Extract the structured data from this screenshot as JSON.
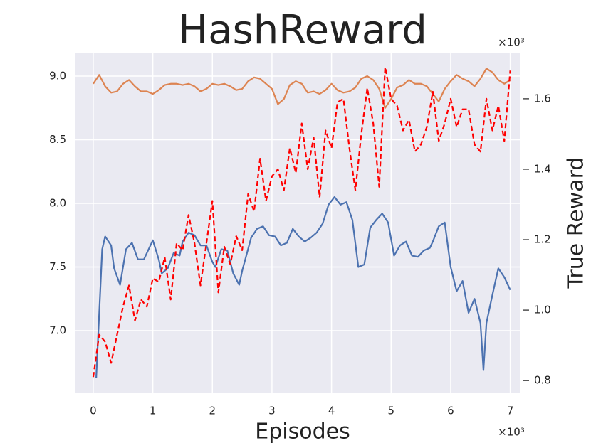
{
  "chart_data": {
    "type": "line",
    "title": "HashReward",
    "x_label": "Episodes",
    "y2_label": "True Reward",
    "x_offset_label": "×10³",
    "y2_offset_label": "×10³",
    "x": [
      0.0,
      0.1,
      0.2,
      0.3,
      0.4,
      0.5,
      0.6,
      0.7,
      0.8,
      0.9,
      1.0,
      1.1,
      1.2,
      1.3,
      1.4,
      1.5,
      1.6,
      1.7,
      1.8,
      1.9,
      2.0,
      2.1,
      2.2,
      2.3,
      2.4,
      2.5,
      2.6,
      2.7,
      2.8,
      2.9,
      3.0,
      3.1,
      3.2,
      3.3,
      3.4,
      3.5,
      3.6,
      3.7,
      3.8,
      3.9,
      4.0,
      4.1,
      4.2,
      4.3,
      4.4,
      4.5,
      4.6,
      4.7,
      4.8,
      4.9,
      5.0,
      5.1,
      5.2,
      5.3,
      5.4,
      5.5,
      5.6,
      5.7,
      5.8,
      5.9,
      6.0,
      6.1,
      6.2,
      6.3,
      6.4,
      6.5,
      6.6,
      6.7,
      6.8,
      6.9,
      7.0
    ],
    "series": [
      {
        "color": "#4c72b0",
        "x": [
          0.05,
          0.15,
          0.2,
          0.3,
          0.35,
          0.45,
          0.55,
          0.65,
          0.75,
          0.85,
          0.9,
          1.0,
          1.1,
          1.15,
          1.25,
          1.35,
          1.45,
          1.5,
          1.6,
          1.7,
          1.8,
          1.9,
          2.0,
          2.05,
          2.15,
          2.25,
          2.35,
          2.45,
          2.5,
          2.65,
          2.75,
          2.85,
          2.95,
          3.05,
          3.15,
          3.25,
          3.35,
          3.45,
          3.55,
          3.65,
          3.75,
          3.85,
          3.95,
          4.05,
          4.15,
          4.25,
          4.35,
          4.45,
          4.55,
          4.65,
          4.75,
          4.85,
          4.95,
          5.05,
          5.15,
          5.25,
          5.35,
          5.45,
          5.55,
          5.65,
          5.7,
          5.8,
          5.9,
          6.0,
          6.1,
          6.2,
          6.3,
          6.4,
          6.5,
          6.55,
          6.6,
          6.7,
          6.8,
          6.9,
          7.0
        ],
        "values": [
          6.63,
          7.64,
          7.74,
          7.67,
          7.49,
          7.36,
          7.64,
          7.69,
          7.56,
          7.56,
          7.61,
          7.71,
          7.56,
          7.45,
          7.49,
          7.61,
          7.59,
          7.7,
          7.77,
          7.75,
          7.67,
          7.67,
          7.54,
          7.5,
          7.64,
          7.63,
          7.45,
          7.36,
          7.47,
          7.73,
          7.8,
          7.82,
          7.75,
          7.74,
          7.67,
          7.69,
          7.8,
          7.74,
          7.7,
          7.73,
          7.77,
          7.84,
          7.99,
          8.05,
          7.99,
          8.01,
          7.87,
          7.5,
          7.52,
          7.81,
          7.87,
          7.92,
          7.85,
          7.59,
          7.67,
          7.7,
          7.59,
          7.58,
          7.63,
          7.65,
          7.7,
          7.82,
          7.85,
          7.5,
          7.31,
          7.39,
          7.14,
          7.25,
          7.06,
          6.69,
          7.06,
          7.28,
          7.49,
          7.42,
          7.32
        ]
      },
      {
        "color": "#dd8452",
        "values": [
          8.94,
          9.01,
          8.92,
          8.87,
          8.88,
          8.94,
          8.97,
          8.92,
          8.88,
          8.88,
          8.86,
          8.89,
          8.93,
          8.94,
          8.94,
          8.93,
          8.94,
          8.92,
          8.88,
          8.9,
          8.94,
          8.93,
          8.94,
          8.92,
          8.89,
          8.9,
          8.96,
          8.99,
          8.98,
          8.94,
          8.9,
          8.78,
          8.82,
          8.93,
          8.96,
          8.94,
          8.87,
          8.88,
          8.86,
          8.89,
          8.94,
          8.89,
          8.87,
          8.88,
          8.91,
          8.98,
          9.0,
          8.97,
          8.9,
          8.75,
          8.82,
          8.91,
          8.93,
          8.97,
          8.94,
          8.94,
          8.92,
          8.86,
          8.8,
          8.9,
          8.96,
          9.01,
          8.98,
          8.96,
          8.92,
          8.98,
          9.06,
          9.03,
          8.97,
          8.94,
          8.97
        ]
      },
      {
        "color": "#ff0000",
        "axis": "y2",
        "dashed": true,
        "values": [
          0.81,
          0.93,
          0.91,
          0.85,
          0.93,
          1.01,
          1.07,
          0.97,
          1.03,
          1.01,
          1.09,
          1.08,
          1.15,
          1.03,
          1.19,
          1.17,
          1.27,
          1.19,
          1.07,
          1.19,
          1.31,
          1.05,
          1.18,
          1.13,
          1.21,
          1.17,
          1.33,
          1.28,
          1.43,
          1.31,
          1.38,
          1.4,
          1.34,
          1.46,
          1.39,
          1.53,
          1.4,
          1.49,
          1.32,
          1.51,
          1.46,
          1.59,
          1.6,
          1.46,
          1.34,
          1.5,
          1.63,
          1.53,
          1.35,
          1.69,
          1.6,
          1.58,
          1.51,
          1.54,
          1.45,
          1.47,
          1.52,
          1.62,
          1.48,
          1.53,
          1.6,
          1.52,
          1.57,
          1.57,
          1.47,
          1.45,
          1.6,
          1.51,
          1.58,
          1.48,
          1.68
        ]
      }
    ],
    "xlim": [
      -0.31,
      7.16
    ],
    "xticks": [
      0,
      1,
      2,
      3,
      4,
      5,
      6,
      7
    ],
    "ylim": [
      6.514,
      9.179
    ],
    "yticks": [
      {
        "value": 7,
        "label": "7.0"
      },
      7.5,
      {
        "value": 8,
        "label": "8.0"
      },
      8.5,
      {
        "value": 9,
        "label": "9.0"
      }
    ],
    "y2lim": [
      0.766,
      1.729
    ],
    "y2ticks": [
      0.8,
      {
        "value": 1,
        "label": "1.0"
      },
      1.2,
      1.4,
      1.6
    ],
    "grid": true
  }
}
